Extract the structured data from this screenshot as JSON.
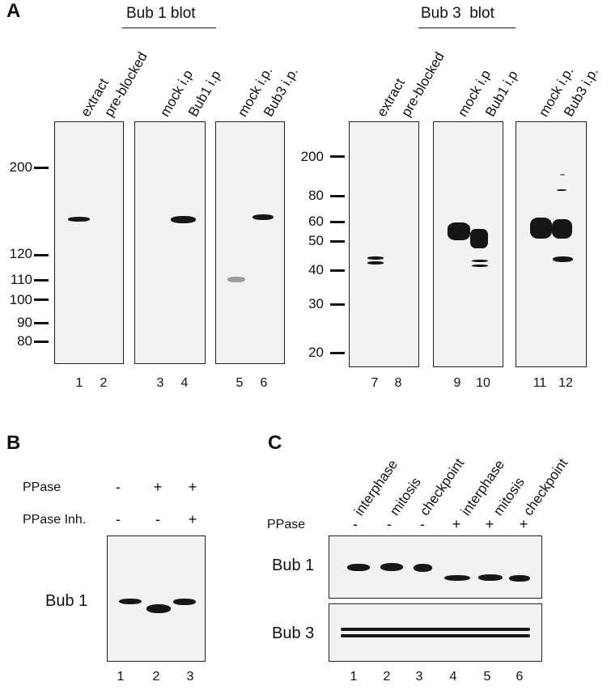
{
  "panel_a": {
    "letter": "A",
    "bub1_blot": {
      "title": "Bub 1 blot",
      "mw_labels": [
        "200",
        "120",
        "110",
        "100",
        "90",
        "80"
      ],
      "gels": [
        {
          "lanes": [
            {
              "label": "extract",
              "number": "1"
            },
            {
              "label": "pre-blocked",
              "number": "2"
            }
          ]
        },
        {
          "lanes": [
            {
              "label": "mock i.p",
              "number": "3"
            },
            {
              "label": "Bub1 i.p",
              "number": "4"
            }
          ]
        },
        {
          "lanes": [
            {
              "label": "mock i.p.",
              "number": "5"
            },
            {
              "label": "Bub3 i.p.",
              "number": "6"
            }
          ]
        }
      ]
    },
    "bub3_blot": {
      "title": "Bub 3  blot",
      "mw_labels": [
        "200",
        "80",
        "60",
        "50",
        "40",
        "30",
        "20"
      ],
      "gels": [
        {
          "lanes": [
            {
              "label": "extract",
              "number": "7"
            },
            {
              "label": "pre-blocked",
              "number": "8"
            }
          ]
        },
        {
          "lanes": [
            {
              "label": "mock i.p",
              "number": "9"
            },
            {
              "label": "Bub1 i.p",
              "number": "10"
            }
          ]
        },
        {
          "lanes": [
            {
              "label": "mock i.p.",
              "number": "11"
            },
            {
              "label": "Bub3 i.p.",
              "number": "12"
            }
          ]
        }
      ]
    }
  },
  "panel_b": {
    "letter": "B",
    "rows": [
      {
        "label": "PPase",
        "signs": [
          "-",
          "+",
          "+"
        ]
      },
      {
        "label": "PPase Inh.",
        "signs": [
          "-",
          "-",
          "+"
        ]
      }
    ],
    "protein": "Bub 1",
    "lane_numbers": [
      "1",
      "2",
      "3"
    ]
  },
  "panel_c": {
    "letter": "C",
    "conditions": [
      "interphase",
      "mitosis",
      "checkpoint",
      "interphase",
      "mitosis",
      "checkpoint"
    ],
    "ppase_label": "PPase",
    "ppase_signs": [
      "-",
      "-",
      "-",
      "+",
      "+",
      "+"
    ],
    "proteins": [
      "Bub 1",
      "Bub 3"
    ],
    "lane_numbers": [
      "1",
      "2",
      "3",
      "4",
      "5",
      "6"
    ]
  }
}
